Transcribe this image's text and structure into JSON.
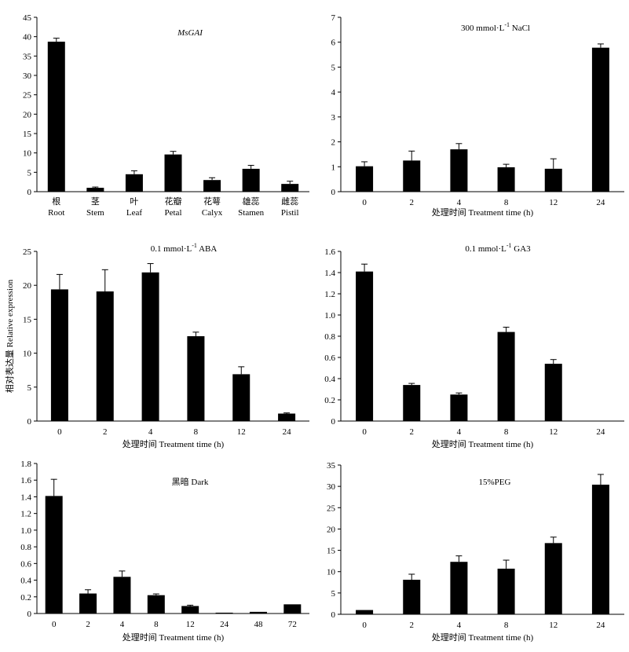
{
  "figure": {
    "ylabel": "相对表达量 Relative expression"
  },
  "chart_data": [
    {
      "type": "bar",
      "title": "MsGAI",
      "title_italic": true,
      "categories_cn": [
        "根",
        "茎",
        "叶",
        "花瓣",
        "花萼",
        "雄蕊",
        "雌蕊"
      ],
      "categories": [
        "Root",
        "Stem",
        "Leaf",
        "Petal",
        "Calyx",
        "Stamen",
        "Pistil"
      ],
      "values": [
        38.7,
        1.0,
        4.5,
        9.6,
        3.0,
        5.9,
        2.0
      ],
      "errors": [
        0.9,
        0.2,
        0.9,
        0.8,
        0.6,
        0.9,
        0.7
      ],
      "xlabel": "",
      "ylim": [
        0,
        45
      ],
      "yticks": [
        0,
        5,
        10,
        15,
        20,
        25,
        30,
        35,
        40,
        45
      ],
      "ytick_labels": [
        "0",
        "5",
        "10",
        "15",
        "20",
        "25",
        "30",
        "35",
        "40",
        "45"
      ],
      "grid": false
    },
    {
      "type": "bar",
      "title": "300 mmol·L-1 NaCl",
      "title_parts": [
        "300 mmol·L",
        "-1",
        " NaCl"
      ],
      "categories": [
        "0",
        "2",
        "4",
        "8",
        "12",
        "24"
      ],
      "values": [
        1.02,
        1.25,
        1.7,
        0.98,
        0.92,
        5.78
      ],
      "errors": [
        0.18,
        0.38,
        0.23,
        0.12,
        0.4,
        0.15
      ],
      "xlabel": "处理时间 Treatment time (h)",
      "ylim": [
        0,
        7
      ],
      "yticks": [
        0,
        1,
        2,
        3,
        4,
        5,
        6,
        7
      ],
      "ytick_labels": [
        "0",
        "1",
        "2",
        "3",
        "4",
        "5",
        "6",
        "7"
      ],
      "grid": false
    },
    {
      "type": "bar",
      "title": "0.1 mmol·L-1 ABA",
      "title_parts": [
        "0.1 mmol·L",
        "-1",
        " ABA"
      ],
      "categories": [
        "0",
        "2",
        "4",
        "8",
        "12",
        "24"
      ],
      "values": [
        19.4,
        19.1,
        21.9,
        12.5,
        6.9,
        1.1
      ],
      "errors": [
        2.2,
        3.2,
        1.3,
        0.6,
        1.1,
        0.1
      ],
      "xlabel": "处理时间 Treatment time (h)",
      "ylim": [
        0,
        25
      ],
      "yticks": [
        0,
        5,
        10,
        15,
        20,
        25
      ],
      "ytick_labels": [
        "0",
        "5",
        "10",
        "15",
        "20",
        "25"
      ],
      "grid": false
    },
    {
      "type": "bar",
      "title": "0.1 mmol·L-1 GA3",
      "title_parts": [
        "0.1 mmol·L",
        "-1",
        " GA3"
      ],
      "categories": [
        "0",
        "2",
        "4",
        "8",
        "12",
        "24"
      ],
      "values": [
        1.41,
        0.34,
        0.25,
        0.84,
        0.54,
        0.0
      ],
      "errors": [
        0.07,
        0.015,
        0.015,
        0.045,
        0.04,
        0.0
      ],
      "xlabel": "处理时间 Treatment time (h)",
      "ylim": [
        0,
        1.6
      ],
      "yticks": [
        0,
        0.2,
        0.4,
        0.6,
        0.8,
        1.0,
        1.2,
        1.4,
        1.6
      ],
      "ytick_labels": [
        "0",
        "0.2",
        "0.4",
        "0.6",
        "0.8",
        "1.0",
        "1.2",
        "1.4",
        "1.6"
      ],
      "grid": false
    },
    {
      "type": "bar",
      "title": "黑暗 Dark",
      "categories": [
        "0",
        "2",
        "4",
        "8",
        "12",
        "24",
        "48",
        "72"
      ],
      "values": [
        1.41,
        0.24,
        0.44,
        0.22,
        0.09,
        0.01,
        0.02,
        0.11
      ],
      "errors": [
        0.2,
        0.045,
        0.07,
        0.015,
        0.01,
        0.0,
        0.0,
        0.0
      ],
      "xlabel": "处理时间 Treatment time (h)",
      "ylim": [
        0,
        1.8
      ],
      "yticks": [
        0,
        0.2,
        0.4,
        0.6,
        0.8,
        1.0,
        1.2,
        1.4,
        1.6,
        1.8
      ],
      "ytick_labels": [
        "0",
        "0.2",
        "0.4",
        "0.6",
        "0.8",
        "1.0",
        "1.2",
        "1.4",
        "1.6",
        "1.8"
      ],
      "grid": false
    },
    {
      "type": "bar",
      "title": "15%PEG",
      "categories": [
        "0",
        "2",
        "4",
        "8",
        "12",
        "24"
      ],
      "values": [
        1.0,
        8.1,
        12.3,
        10.7,
        16.7,
        30.4
      ],
      "errors": [
        0.0,
        1.3,
        1.4,
        2.0,
        1.4,
        2.4
      ],
      "xlabel": "处理时间 Treatment time (h)",
      "ylim": [
        0,
        35
      ],
      "yticks": [
        0,
        5,
        10,
        15,
        20,
        25,
        30,
        35
      ],
      "ytick_labels": [
        "0",
        "5",
        "10",
        "15",
        "20",
        "25",
        "30",
        "35"
      ],
      "grid": false
    }
  ]
}
